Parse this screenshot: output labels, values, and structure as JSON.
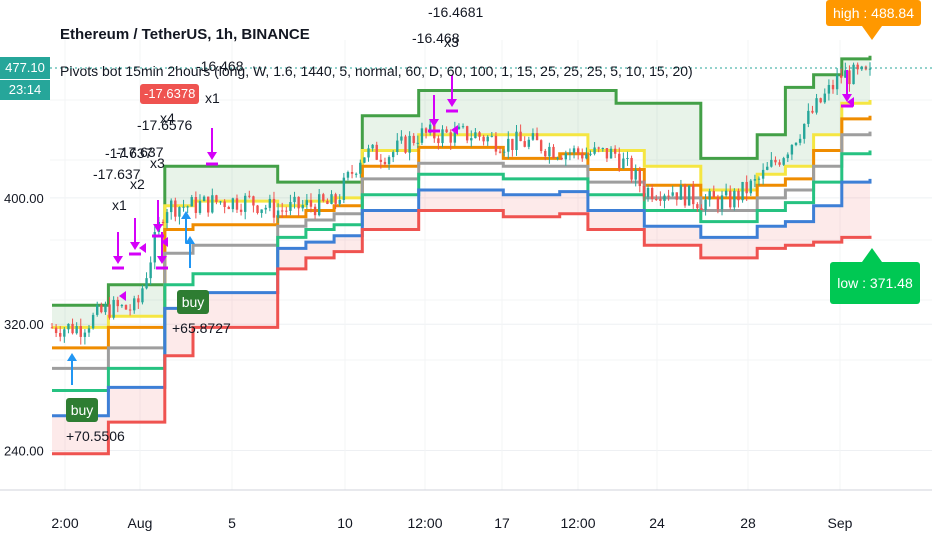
{
  "header": {
    "title": "Ethereum / TetherUS, 1h, BINANCE",
    "indicator": "Pivots bot 15min 2hours (long, W, 1.6, 1440, 5, normal, 60, D, 60, 100, 1, 15, 25, 25, 25, 5, 10, 15, 20)"
  },
  "price_tags": {
    "last": "477.10",
    "countdown": "23:14"
  },
  "extremes": {
    "high": "high : 488.84",
    "low": "low : 371.48"
  },
  "colors": {
    "green": "#43a047",
    "yellow": "#f5e642",
    "orange": "#ef8c00",
    "gray": "#9e9e9e",
    "teal": "#26c281",
    "blue": "#3d7fd6",
    "red": "#ef5350",
    "magenta": "#d500f9"
  },
  "annotations": {
    "buy1_label": "buy",
    "buy1_value": "+70.5506",
    "buy2_label": "buy",
    "buy2_value": "+65.8727",
    "s1": "-17.637",
    "s1x": "x1",
    "s2": "-17.637",
    "s2x": "x2",
    "s3": "-17.637",
    "s3x": "x3",
    "s4": "-17.6576",
    "s4x": "x4",
    "s5": "-17.6378",
    "s6": "-16.468",
    "s6x": "x1",
    "s7": "-16.468",
    "s7x": "x3",
    "s8": "-16.4681"
  },
  "chart_data": {
    "type": "line",
    "title": "Ethereum / TetherUS, 1h, BINANCE",
    "xlabel": "",
    "ylabel": "",
    "x_ticks": [
      "2:00",
      "Aug",
      "5",
      "10",
      "12:00",
      "17",
      "12:00",
      "24",
      "28",
      "Sep"
    ],
    "y_ticks": [
      "240.00",
      "320.00",
      "400.00"
    ],
    "ylim": [
      215,
      500
    ],
    "grid": true,
    "series": [
      {
        "name": "",
        "color": "#43a047",
        "values": [
          332,
          332,
          345,
          345,
          420,
          420,
          420,
          420,
          410,
          410,
          410,
          452,
          452,
          468,
          468,
          468,
          468,
          468,
          468,
          468,
          460,
          460,
          460,
          425,
          425,
          440,
          470,
          478,
          488,
          490
        ]
      },
      {
        "name": "",
        "color": "#f5e642",
        "values": [
          318,
          318,
          325,
          325,
          395,
          398,
          398,
          398,
          395,
          398,
          400,
          430,
          430,
          440,
          440,
          440,
          440,
          440,
          440,
          430,
          430,
          420,
          420,
          405,
          405,
          415,
          420,
          440,
          460,
          462
        ]
      },
      {
        "name": "",
        "color": "#ef8c00",
        "values": [
          305,
          305,
          318,
          318,
          380,
          383,
          383,
          383,
          388,
          392,
          395,
          420,
          420,
          432,
          432,
          432,
          425,
          425,
          428,
          418,
          418,
          408,
          408,
          400,
          400,
          408,
          412,
          430,
          450,
          452
        ]
      },
      {
        "name": "",
        "color": "#9e9e9e",
        "values": [
          292,
          292,
          305,
          305,
          365,
          370,
          370,
          370,
          382,
          386,
          390,
          412,
          412,
          422,
          422,
          422,
          420,
          420,
          420,
          410,
          410,
          400,
          400,
          392,
          392,
          400,
          405,
          420,
          440,
          442
        ]
      },
      {
        "name": "",
        "color": "#26c281",
        "values": [
          278,
          278,
          292,
          292,
          345,
          352,
          352,
          352,
          375,
          380,
          383,
          402,
          402,
          415,
          415,
          415,
          412,
          412,
          412,
          402,
          402,
          392,
          392,
          385,
          385,
          392,
          397,
          410,
          428,
          430
        ]
      },
      {
        "name": "",
        "color": "#3d7fd6",
        "values": [
          262,
          262,
          280,
          280,
          330,
          340,
          340,
          340,
          368,
          372,
          376,
          392,
          392,
          405,
          405,
          405,
          402,
          402,
          404,
          392,
          392,
          382,
          382,
          375,
          375,
          382,
          385,
          395,
          410,
          412
        ]
      },
      {
        "name": "",
        "color": "#ef5350",
        "values": [
          238,
          238,
          258,
          258,
          300,
          318,
          318,
          318,
          355,
          362,
          366,
          380,
          380,
          392,
          392,
          392,
          388,
          388,
          390,
          380,
          380,
          370,
          370,
          362,
          362,
          368,
          370,
          372,
          375,
          376
        ]
      },
      {
        "name": "",
        "color": "#26a69a",
        "values": [
          318,
          318,
          330,
          330,
          395,
          395,
          398,
          398,
          392,
          395,
          396,
          428,
          428,
          440,
          440,
          440,
          435,
          435,
          430,
          428,
          428,
          405,
          405,
          398,
          398,
          410,
          430,
          455,
          478,
          477
        ]
      }
    ]
  }
}
